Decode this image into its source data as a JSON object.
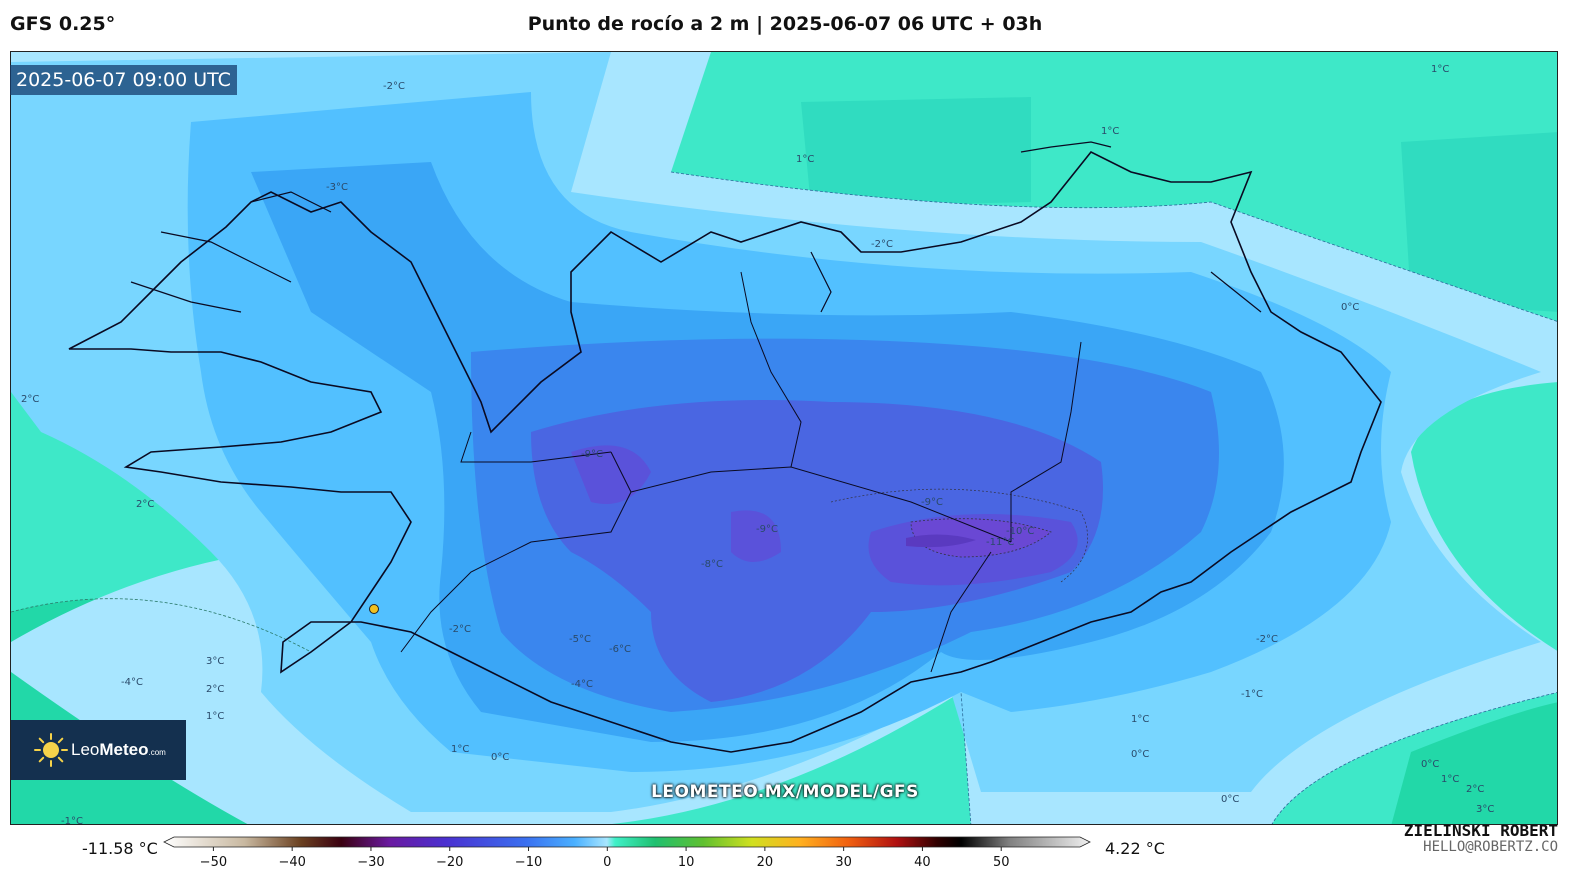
{
  "header": {
    "model": "GFS 0.25°",
    "title": "Punto de rocío a 2 m | 2025-06-07 06 UTC + 03h"
  },
  "map": {
    "timestamp": "2025-06-07 09:00 UTC",
    "region": "Iceland",
    "contour_labels": [
      "-2°C",
      "1°C",
      "1°C",
      "1°C",
      "-3°C",
      "-2°C",
      "0°C",
      "2°C",
      "2°C",
      "-9°C",
      "-9°C",
      "-10°C",
      "-11°C",
      "-8°C",
      "-5°C",
      "-6°C",
      "-4°C",
      "-2°C",
      "3°C",
      "-4°C",
      "2°C",
      "1°C",
      "-2°C",
      "-1°C",
      "1°C",
      "0°C",
      "1°C",
      "0°C",
      "1°C",
      "2°C",
      "3°C",
      "0°C",
      "-1°C",
      "0°C",
      "-9°C"
    ],
    "watermark": "LEOMETEO.MX/MODEL/GFS"
  },
  "logo": {
    "brand_light": "Leo",
    "brand_bold": "Meteo",
    "brand_suffix": ".com"
  },
  "colorbar": {
    "min_label": "-11.58 °C",
    "max_label": "4.22 °C",
    "ticks": [
      "−50",
      "−40",
      "−30",
      "−20",
      "−10",
      "0",
      "10",
      "20",
      "30",
      "40",
      "50"
    ],
    "range": [
      -55,
      60
    ],
    "stops": [
      {
        "v": -55,
        "c": "#ffffff"
      },
      {
        "v": -45,
        "c": "#c8b8a0"
      },
      {
        "v": -38,
        "c": "#6a4020"
      },
      {
        "v": -33,
        "c": "#3a0010"
      },
      {
        "v": -27,
        "c": "#6a1aa0"
      },
      {
        "v": -20,
        "c": "#4a30d0"
      },
      {
        "v": -10,
        "c": "#3a70f0"
      },
      {
        "v": -4,
        "c": "#4ab0ff"
      },
      {
        "v": 0,
        "c": "#a8e6ff"
      },
      {
        "v": 1,
        "c": "#40f0c8"
      },
      {
        "v": 6,
        "c": "#20c070"
      },
      {
        "v": 12,
        "c": "#60c030"
      },
      {
        "v": 18,
        "c": "#d0e020"
      },
      {
        "v": 24,
        "c": "#ffb020"
      },
      {
        "v": 30,
        "c": "#f06010"
      },
      {
        "v": 36,
        "c": "#b01010"
      },
      {
        "v": 41,
        "c": "#300000"
      },
      {
        "v": 44,
        "c": "#000000"
      },
      {
        "v": 50,
        "c": "#808080"
      },
      {
        "v": 60,
        "c": "#f0f0f0"
      }
    ]
  },
  "author": {
    "name": "ZIELINSKI ROBERT",
    "email": "HELLO@ROBERTZ.CO"
  },
  "colors": {
    "sea_warm": "#3ee8c8",
    "sea_deep": "#20d8a8",
    "zero_band": "#a8e6ff",
    "cold_1": "#6ad0ff",
    "cold_2": "#3aa8f8",
    "cold_3": "#3a80f0",
    "cold_4": "#4a60e0",
    "cold_5": "#5a50d8"
  }
}
